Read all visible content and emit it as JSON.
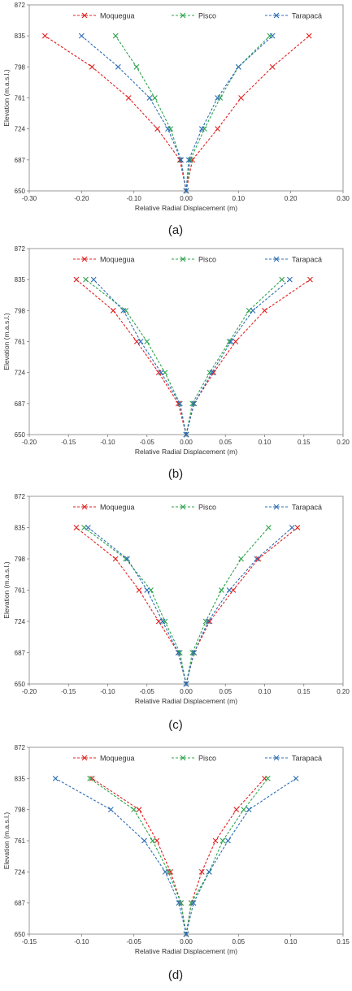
{
  "colors": {
    "moquegua": "#e0201f",
    "pisco": "#2ca34a",
    "tarapaca": "#2b6cb6",
    "axis": "#7f7f7f",
    "grid": "#d9d9d9"
  },
  "chart_data": [
    {
      "type": "line",
      "caption": "(a)",
      "xlabel": "Relative Radial Displacement (m)",
      "ylabel": "Elevation (m.a.s.l.)",
      "xlim": [
        -0.3,
        0.3
      ],
      "ylim": [
        650,
        872
      ],
      "xticks": [
        "-0.30",
        "-0.20",
        "-0.10",
        "0.00",
        "0.10",
        "0.20",
        "0.30"
      ],
      "yticks": [
        "650",
        "687",
        "724",
        "761",
        "798",
        "835",
        "872"
      ],
      "legend_position": "top",
      "series": [
        {
          "name": "Moquegua",
          "left": [
            [
              0.0,
              650
            ],
            [
              -0.012,
              687
            ],
            [
              -0.055,
              724
            ],
            [
              -0.11,
              761
            ],
            [
              -0.18,
              798
            ],
            [
              -0.27,
              835
            ]
          ],
          "right": [
            [
              0.0,
              650
            ],
            [
              0.012,
              687
            ],
            [
              0.06,
              724
            ],
            [
              0.105,
              761
            ],
            [
              0.165,
              798
            ],
            [
              0.235,
              835
            ]
          ]
        },
        {
          "name": "Pisco",
          "left": [
            [
              0.0,
              650
            ],
            [
              -0.01,
              687
            ],
            [
              -0.03,
              724
            ],
            [
              -0.06,
              761
            ],
            [
              -0.095,
              798
            ],
            [
              -0.135,
              835
            ]
          ],
          "right": [
            [
              0.0,
              650
            ],
            [
              0.008,
              687
            ],
            [
              0.035,
              724
            ],
            [
              0.065,
              761
            ],
            [
              0.1,
              798
            ],
            [
              0.16,
              835
            ]
          ]
        },
        {
          "name": "Tarapacá",
          "left": [
            [
              0.0,
              650
            ],
            [
              -0.01,
              687
            ],
            [
              -0.035,
              724
            ],
            [
              -0.07,
              761
            ],
            [
              -0.13,
              798
            ],
            [
              -0.2,
              835
            ]
          ],
          "right": [
            [
              0.0,
              650
            ],
            [
              0.005,
              687
            ],
            [
              0.03,
              724
            ],
            [
              0.06,
              761
            ],
            [
              0.1,
              798
            ],
            [
              0.165,
              835
            ]
          ]
        }
      ]
    },
    {
      "type": "line",
      "caption": "(b)",
      "xlabel": "Relative Radial Displacement (m)",
      "ylabel": "Elevation (m.a.s.l.)",
      "xlim": [
        -0.2,
        0.2
      ],
      "ylim": [
        650,
        872
      ],
      "xticks": [
        "-0.20",
        "-0.15",
        "-0.10",
        "-0.05",
        "0.00",
        "0.05",
        "0.10",
        "0.15",
        "0.20"
      ],
      "yticks": [
        "650",
        "687",
        "724",
        "761",
        "798",
        "835",
        "872"
      ],
      "legend_position": "top",
      "series": [
        {
          "name": "Moquegua",
          "left": [
            [
              0.0,
              650
            ],
            [
              -0.01,
              687
            ],
            [
              -0.035,
              724
            ],
            [
              -0.063,
              761
            ],
            [
              -0.093,
              798
            ],
            [
              -0.14,
              835
            ]
          ],
          "right": [
            [
              0.0,
              650
            ],
            [
              0.01,
              687
            ],
            [
              0.035,
              724
            ],
            [
              0.063,
              761
            ],
            [
              0.1,
              798
            ],
            [
              0.158,
              835
            ]
          ]
        },
        {
          "name": "Pisco",
          "left": [
            [
              0.0,
              650
            ],
            [
              -0.008,
              687
            ],
            [
              -0.027,
              724
            ],
            [
              -0.05,
              761
            ],
            [
              -0.077,
              798
            ],
            [
              -0.128,
              835
            ]
          ],
          "right": [
            [
              0.0,
              650
            ],
            [
              0.008,
              687
            ],
            [
              0.03,
              724
            ],
            [
              0.055,
              761
            ],
            [
              0.08,
              798
            ],
            [
              0.122,
              835
            ]
          ]
        },
        {
          "name": "Tarapacá",
          "left": [
            [
              0.0,
              650
            ],
            [
              -0.008,
              687
            ],
            [
              -0.032,
              724
            ],
            [
              -0.058,
              761
            ],
            [
              -0.08,
              798
            ],
            [
              -0.118,
              835
            ]
          ],
          "right": [
            [
              0.0,
              650
            ],
            [
              0.01,
              687
            ],
            [
              0.033,
              724
            ],
            [
              0.057,
              761
            ],
            [
              0.085,
              798
            ],
            [
              0.132,
              835
            ]
          ]
        }
      ]
    },
    {
      "type": "line",
      "caption": "(c)",
      "xlabel": "Relative Radial Displacement (m)",
      "ylabel": "Elevation (m.a.s.l.)",
      "xlim": [
        -0.2,
        0.2
      ],
      "ylim": [
        650,
        872
      ],
      "xticks": [
        "-0.20",
        "-0.15",
        "-0.10",
        "-0.05",
        "0.00",
        "0.05",
        "0.10",
        "0.15",
        "0.20"
      ],
      "yticks": [
        "650",
        "687",
        "724",
        "761",
        "798",
        "835",
        "872"
      ],
      "legend_position": "top",
      "series": [
        {
          "name": "Moquegua",
          "left": [
            [
              0.0,
              650
            ],
            [
              -0.01,
              687
            ],
            [
              -0.035,
              724
            ],
            [
              -0.06,
              761
            ],
            [
              -0.09,
              798
            ],
            [
              -0.14,
              835
            ]
          ],
          "right": [
            [
              0.0,
              650
            ],
            [
              0.01,
              687
            ],
            [
              0.03,
              724
            ],
            [
              0.06,
              761
            ],
            [
              0.092,
              798
            ],
            [
              0.142,
              835
            ]
          ]
        },
        {
          "name": "Pisco",
          "left": [
            [
              0.0,
              650
            ],
            [
              -0.008,
              687
            ],
            [
              -0.027,
              724
            ],
            [
              -0.045,
              761
            ],
            [
              -0.077,
              798
            ],
            [
              -0.13,
              835
            ]
          ],
          "right": [
            [
              0.0,
              650
            ],
            [
              0.008,
              687
            ],
            [
              0.025,
              724
            ],
            [
              0.045,
              761
            ],
            [
              0.07,
              798
            ],
            [
              0.105,
              835
            ]
          ]
        },
        {
          "name": "Tarapacá",
          "left": [
            [
              0.0,
              650
            ],
            [
              -0.01,
              687
            ],
            [
              -0.03,
              724
            ],
            [
              -0.05,
              761
            ],
            [
              -0.075,
              798
            ],
            [
              -0.125,
              835
            ]
          ],
          "right": [
            [
              0.0,
              650
            ],
            [
              0.01,
              687
            ],
            [
              0.028,
              724
            ],
            [
              0.055,
              761
            ],
            [
              0.09,
              798
            ],
            [
              0.135,
              835
            ]
          ]
        }
      ]
    },
    {
      "type": "line",
      "caption": "(d)",
      "xlabel": "Relative Radial Displacement (m)",
      "ylabel": "Elevation (m.a.s.l.)",
      "xlim": [
        -0.15,
        0.15
      ],
      "ylim": [
        650,
        872
      ],
      "xticks": [
        "-0.15",
        "-0.10",
        "-0.05",
        "0.00",
        "0.05",
        "0.10",
        "0.15"
      ],
      "yticks": [
        "650",
        "687",
        "724",
        "761",
        "798",
        "835",
        "872"
      ],
      "legend_position": "top",
      "series": [
        {
          "name": "Moquegua",
          "left": [
            [
              0.0,
              650
            ],
            [
              -0.005,
              687
            ],
            [
              -0.015,
              724
            ],
            [
              -0.028,
              761
            ],
            [
              -0.045,
              798
            ],
            [
              -0.09,
              835
            ]
          ],
          "right": [
            [
              0.0,
              650
            ],
            [
              0.005,
              687
            ],
            [
              0.015,
              724
            ],
            [
              0.028,
              761
            ],
            [
              0.048,
              798
            ],
            [
              0.075,
              835
            ]
          ]
        },
        {
          "name": "Pisco",
          "left": [
            [
              0.0,
              650
            ],
            [
              -0.005,
              687
            ],
            [
              -0.017,
              724
            ],
            [
              -0.032,
              761
            ],
            [
              -0.05,
              798
            ],
            [
              -0.092,
              835
            ]
          ],
          "right": [
            [
              0.0,
              650
            ],
            [
              0.005,
              687
            ],
            [
              0.022,
              724
            ],
            [
              0.035,
              761
            ],
            [
              0.055,
              798
            ],
            [
              0.078,
              835
            ]
          ]
        },
        {
          "name": "Tarapacá",
          "left": [
            [
              0.0,
              650
            ],
            [
              -0.007,
              687
            ],
            [
              -0.02,
              724
            ],
            [
              -0.04,
              761
            ],
            [
              -0.072,
              798
            ],
            [
              -0.125,
              835
            ]
          ],
          "right": [
            [
              0.0,
              650
            ],
            [
              0.007,
              687
            ],
            [
              0.022,
              724
            ],
            [
              0.04,
              761
            ],
            [
              0.06,
              798
            ],
            [
              0.105,
              835
            ]
          ]
        }
      ]
    }
  ]
}
